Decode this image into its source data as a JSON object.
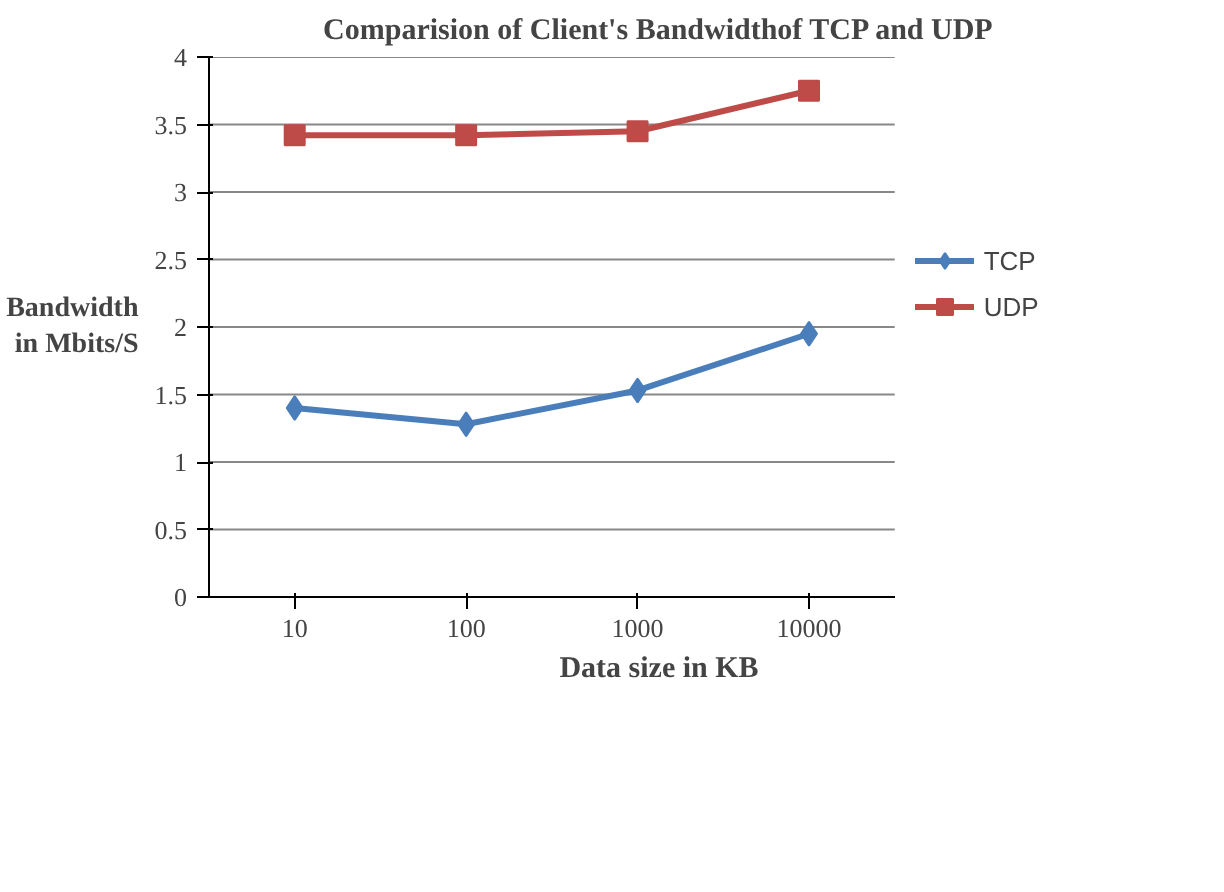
{
  "chart_data": {
    "type": "line",
    "title": "Comparision of Client's Bandwidthof TCP and UDP",
    "xlabel": "Data size in KB",
    "ylabel": "Bandwidth\nin Mbits/S",
    "categories": [
      "10",
      "100",
      "1000",
      "10000"
    ],
    "series": [
      {
        "name": "TCP",
        "color": "#4a7ebb",
        "marker": "diamond",
        "values": [
          1.4,
          1.28,
          1.53,
          1.95
        ]
      },
      {
        "name": "UDP",
        "color": "#be4b48",
        "marker": "square",
        "values": [
          3.42,
          3.42,
          3.45,
          3.75
        ]
      }
    ],
    "ylim": [
      0,
      4
    ],
    "yticks": [
      0,
      0.5,
      1,
      1.5,
      2,
      2.5,
      3,
      3.5,
      4
    ],
    "grid": "y",
    "legend": "right"
  }
}
